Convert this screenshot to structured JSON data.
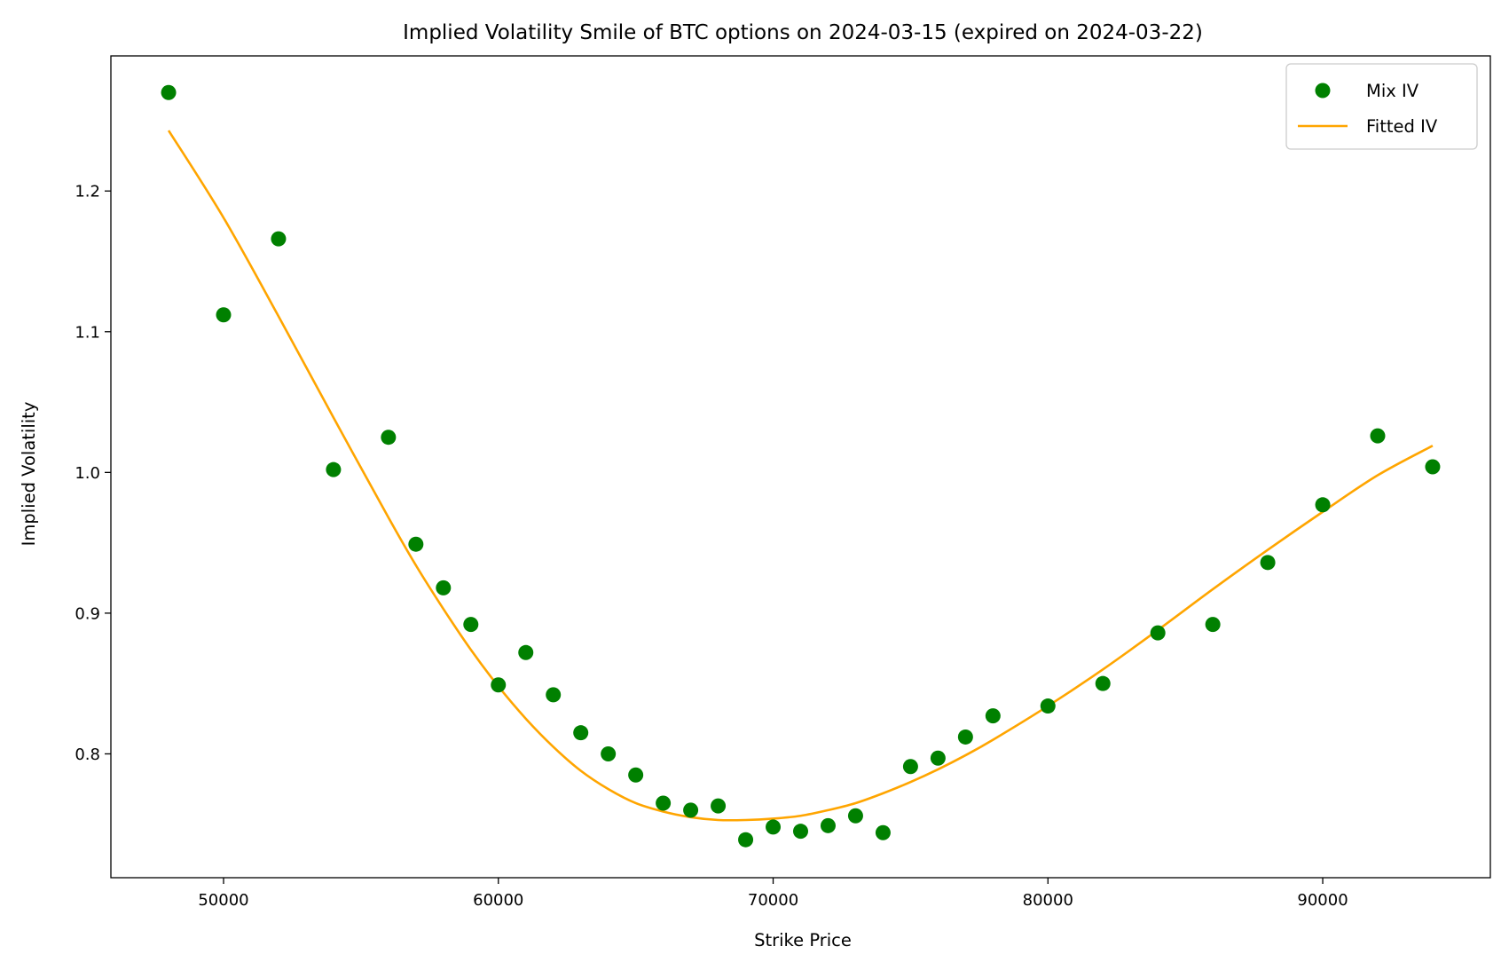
{
  "chart_data": {
    "type": "scatter",
    "title": "Implied Volatility Smile of BTC options on 2024-03-15 (expired on 2024-03-22)",
    "xlabel": "Strike Price",
    "ylabel": "Implied Volatility",
    "xlim": [
      45900,
      96100
    ],
    "ylim": [
      0.712,
      1.296
    ],
    "xticks": [
      50000,
      60000,
      70000,
      80000,
      90000
    ],
    "yticks": [
      0.8,
      0.9,
      1.0,
      1.1,
      1.2
    ],
    "xtick_labels": [
      "50000",
      "60000",
      "70000",
      "80000",
      "90000"
    ],
    "ytick_labels": [
      "0.8",
      "0.9",
      "1.0",
      "1.1",
      "1.2"
    ],
    "grid": false,
    "legend_position": "top-right",
    "series": [
      {
        "name": "Mix IV",
        "kind": "scatter",
        "color": "#008000",
        "x": [
          48000,
          50000,
          52000,
          54000,
          56000,
          57000,
          58000,
          59000,
          60000,
          61000,
          62000,
          63000,
          64000,
          65000,
          66000,
          67000,
          68000,
          69000,
          70000,
          71000,
          72000,
          73000,
          74000,
          75000,
          76000,
          77000,
          78000,
          80000,
          82000,
          84000,
          86000,
          88000,
          90000,
          92000,
          94000
        ],
        "y": [
          1.27,
          1.112,
          1.166,
          1.002,
          1.025,
          0.949,
          0.918,
          0.892,
          0.849,
          0.872,
          0.842,
          0.815,
          0.8,
          0.785,
          0.765,
          0.76,
          0.763,
          0.739,
          0.748,
          0.745,
          0.749,
          0.756,
          0.744,
          0.791,
          0.797,
          0.812,
          0.827,
          0.834,
          0.85,
          0.886,
          0.892,
          0.936,
          0.977,
          1.026,
          1.004
        ]
      },
      {
        "name": "Fitted IV",
        "kind": "line",
        "color": "#FFA500",
        "x": [
          48000,
          50000,
          52000,
          54000,
          56000,
          57000,
          58000,
          59000,
          60000,
          61000,
          62000,
          63000,
          64000,
          65000,
          66000,
          67000,
          68000,
          69000,
          70000,
          71000,
          72000,
          73000,
          74000,
          75000,
          76000,
          77000,
          78000,
          80000,
          82000,
          84000,
          86000,
          88000,
          90000,
          92000,
          94000
        ],
        "y": [
          1.243,
          1.181,
          1.111,
          1.039,
          0.968,
          0.934,
          0.903,
          0.874,
          0.848,
          0.825,
          0.805,
          0.788,
          0.775,
          0.765,
          0.759,
          0.755,
          0.753,
          0.753,
          0.754,
          0.756,
          0.76,
          0.765,
          0.772,
          0.78,
          0.789,
          0.799,
          0.81,
          0.834,
          0.86,
          0.888,
          0.917,
          0.945,
          0.972,
          0.998,
          1.019
        ]
      }
    ]
  }
}
